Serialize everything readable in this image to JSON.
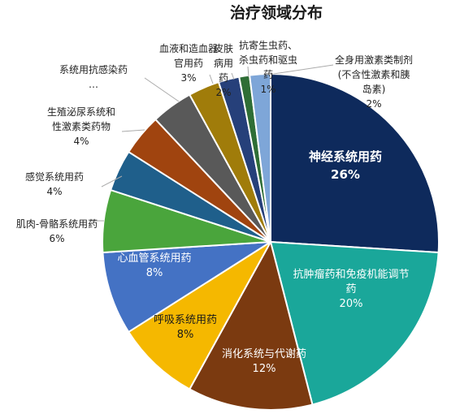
{
  "chart_data": {
    "type": "pie",
    "title": "治疗领域分布",
    "slices": [
      {
        "label": "神经系统用药",
        "value": 26,
        "display": "26%",
        "color": "#0e2a5c"
      },
      {
        "label": "抗肿瘤药和免疫机能调节药",
        "value": 20,
        "display": "20%",
        "color": "#1aa79a"
      },
      {
        "label": "消化系统与代谢药",
        "value": 12,
        "display": "12%",
        "color": "#7b3a10"
      },
      {
        "label": "呼吸系统用药",
        "value": 8,
        "display": "8%",
        "color": "#f5b800"
      },
      {
        "label": "心血管系统用药",
        "value": 8,
        "display": "8%",
        "color": "#4472c4"
      },
      {
        "label": "肌肉-骨骼系统用药",
        "value": 6,
        "display": "6%",
        "color": "#4aa53c"
      },
      {
        "label": "感觉系统用药",
        "value": 4,
        "display": "4%",
        "color": "#1f5f8b"
      },
      {
        "label": "生殖泌尿系统和性激素类药物",
        "value": 4,
        "display": "4%",
        "color": "#a0440f"
      },
      {
        "label": "系统用抗感染药…",
        "value": 4,
        "display": "",
        "color": "#595959"
      },
      {
        "label": "血液和造血器官用药",
        "value": 3,
        "display": "3%",
        "color": "#a07c0a"
      },
      {
        "label": "皮肤病用药",
        "value": 2,
        "display": "2%",
        "color": "#26407a"
      },
      {
        "label": "抗寄生虫药、杀虫药和驱虫药",
        "value": 1,
        "display": "1%",
        "color": "#2f6e36"
      },
      {
        "label": "全身用激素类制剂(不含性激素和胰岛素)",
        "value": 2,
        "display": "2%",
        "color": "#7ea6d8"
      }
    ]
  }
}
